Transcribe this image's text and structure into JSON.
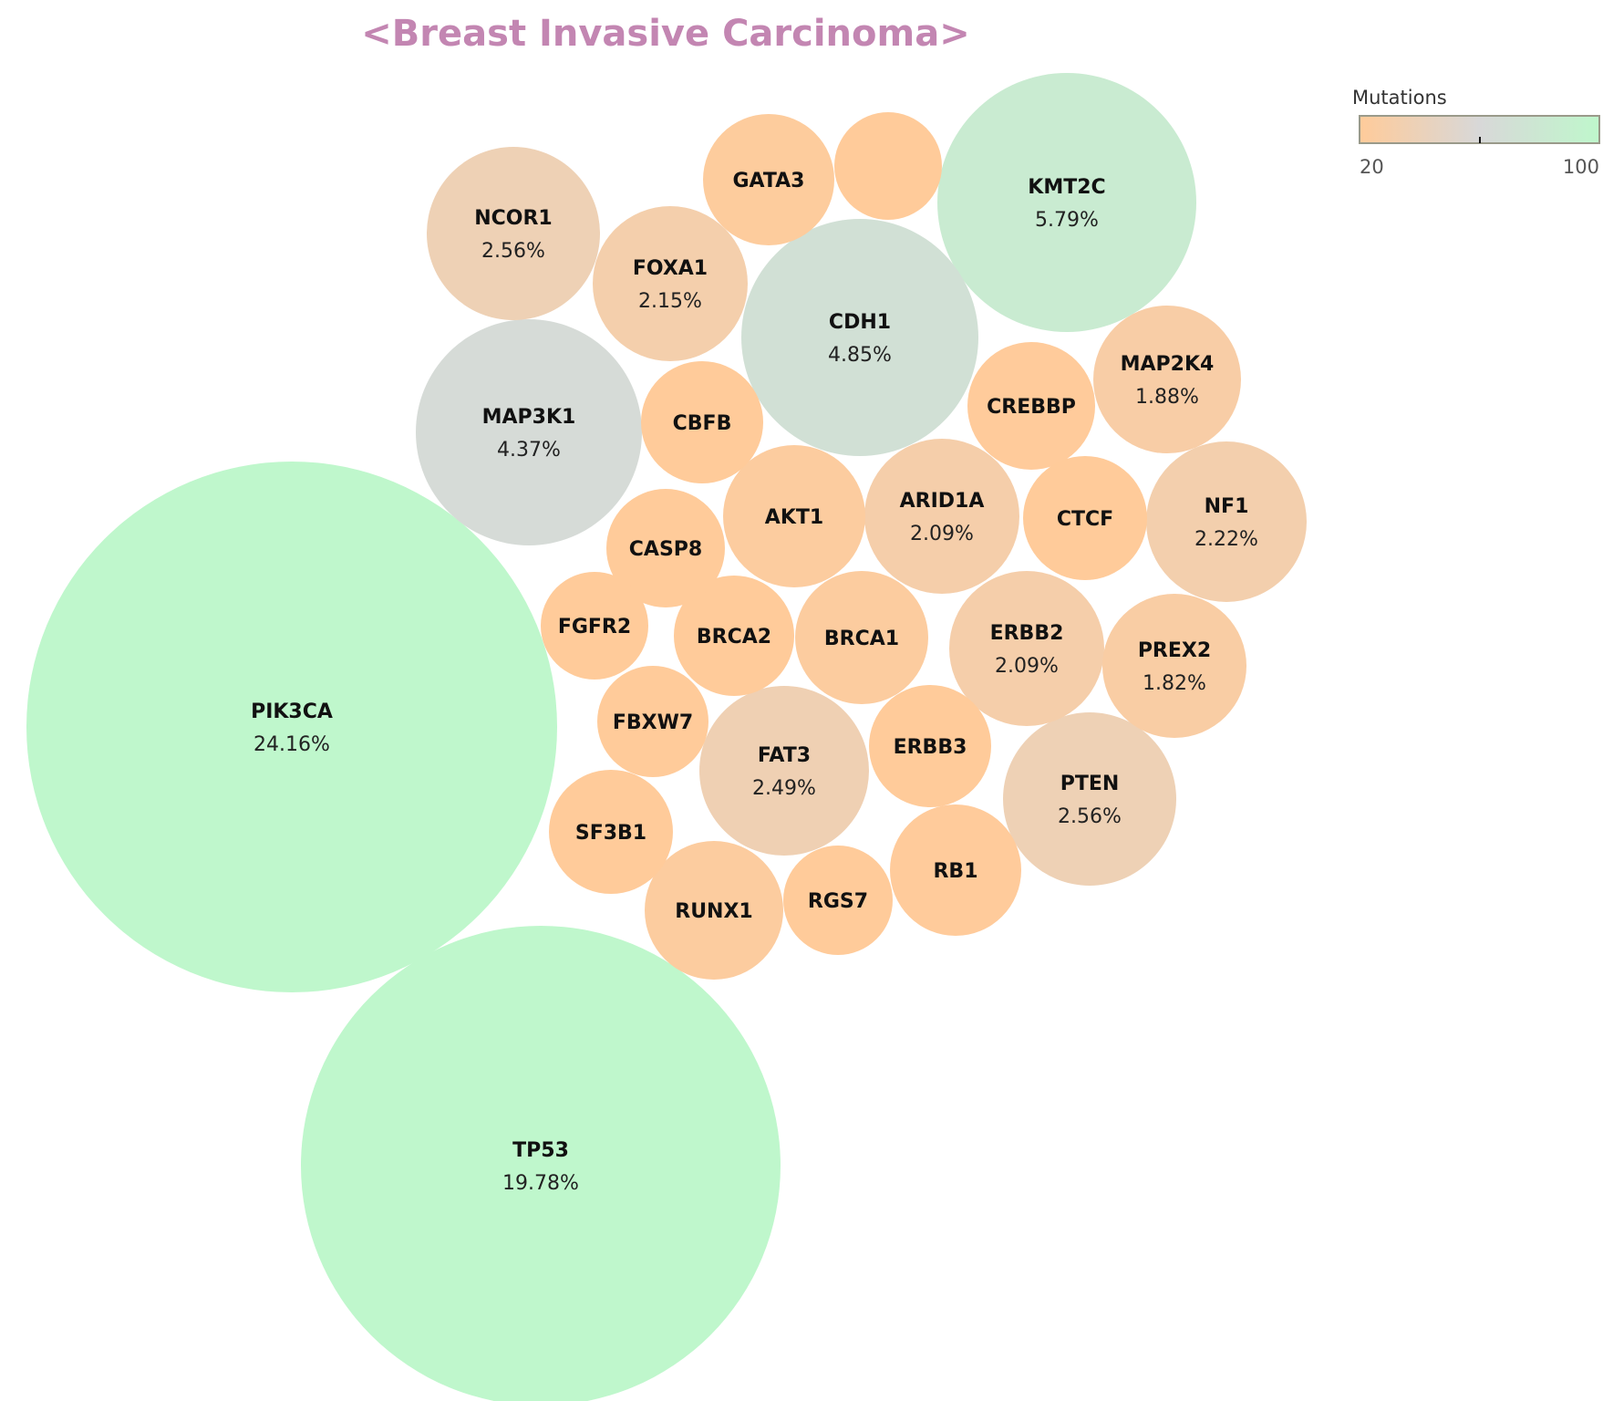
{
  "chart_data": {
    "type": "packed-bubble",
    "title": "<Breast Invasive Carcinoma>",
    "title_color": "#c386b2",
    "color_scale": {
      "title": "Mutations",
      "min": 20,
      "max": 100,
      "tick_labels": [
        "20",
        "100"
      ],
      "low_color": "#ffcb9a",
      "mid_color": "#d8d8d8",
      "high_color": "#bff7cc"
    },
    "bubbles": [
      {
        "gene": "PIK3CA",
        "percent": "24.16%",
        "value": 24.16
      },
      {
        "gene": "TP53",
        "percent": "19.78%",
        "value": 19.78
      },
      {
        "gene": "KMT2C",
        "percent": "5.79%",
        "value": 5.79
      },
      {
        "gene": "CDH1",
        "percent": "4.85%",
        "value": 4.85
      },
      {
        "gene": "MAP3K1",
        "percent": "4.37%",
        "value": 4.37
      },
      {
        "gene": "NCOR1",
        "percent": "2.56%",
        "value": 2.56
      },
      {
        "gene": "PTEN",
        "percent": "2.56%",
        "value": 2.56
      },
      {
        "gene": "FAT3",
        "percent": "2.49%",
        "value": 2.49
      },
      {
        "gene": "NF1",
        "percent": "2.22%",
        "value": 2.22
      },
      {
        "gene": "FOXA1",
        "percent": "2.15%",
        "value": 2.15
      },
      {
        "gene": "ARID1A",
        "percent": "2.09%",
        "value": 2.09
      },
      {
        "gene": "ERBB2",
        "percent": "2.09%",
        "value": 2.09
      },
      {
        "gene": "MAP2K4",
        "percent": "1.88%",
        "value": 1.88
      },
      {
        "gene": "PREX2",
        "percent": "1.82%",
        "value": 1.82
      },
      {
        "gene": "AKT1",
        "percent": "",
        "value": 1.6
      },
      {
        "gene": "BRCA1",
        "percent": "",
        "value": 1.6
      },
      {
        "gene": "GATA3",
        "percent": "",
        "value": 1.5
      },
      {
        "gene": "CREBBP",
        "percent": "",
        "value": 1.4
      },
      {
        "gene": "RUNX1",
        "percent": "",
        "value": 1.6
      },
      {
        "gene": "RB1",
        "percent": "",
        "value": 1.4
      },
      {
        "gene": "CTCF",
        "percent": "",
        "value": 1.3
      },
      {
        "gene": "ERBB3",
        "percent": "",
        "value": 1.3
      },
      {
        "gene": "BRCA2",
        "percent": "",
        "value": 1.3
      },
      {
        "gene": "CBFB",
        "percent": "",
        "value": 1.3
      },
      {
        "gene": "CASP8",
        "percent": "",
        "value": 1.2
      },
      {
        "gene": "SF3B1",
        "percent": "",
        "value": 1.3
      },
      {
        "gene": "FBXW7",
        "percent": "",
        "value": 1.1
      },
      {
        "gene": "RGS7",
        "percent": "",
        "value": 1.0
      },
      {
        "gene": "FGFR2",
        "percent": "",
        "value": 1.0
      },
      {
        "gene": "",
        "percent": "",
        "value": 1.0
      }
    ]
  }
}
